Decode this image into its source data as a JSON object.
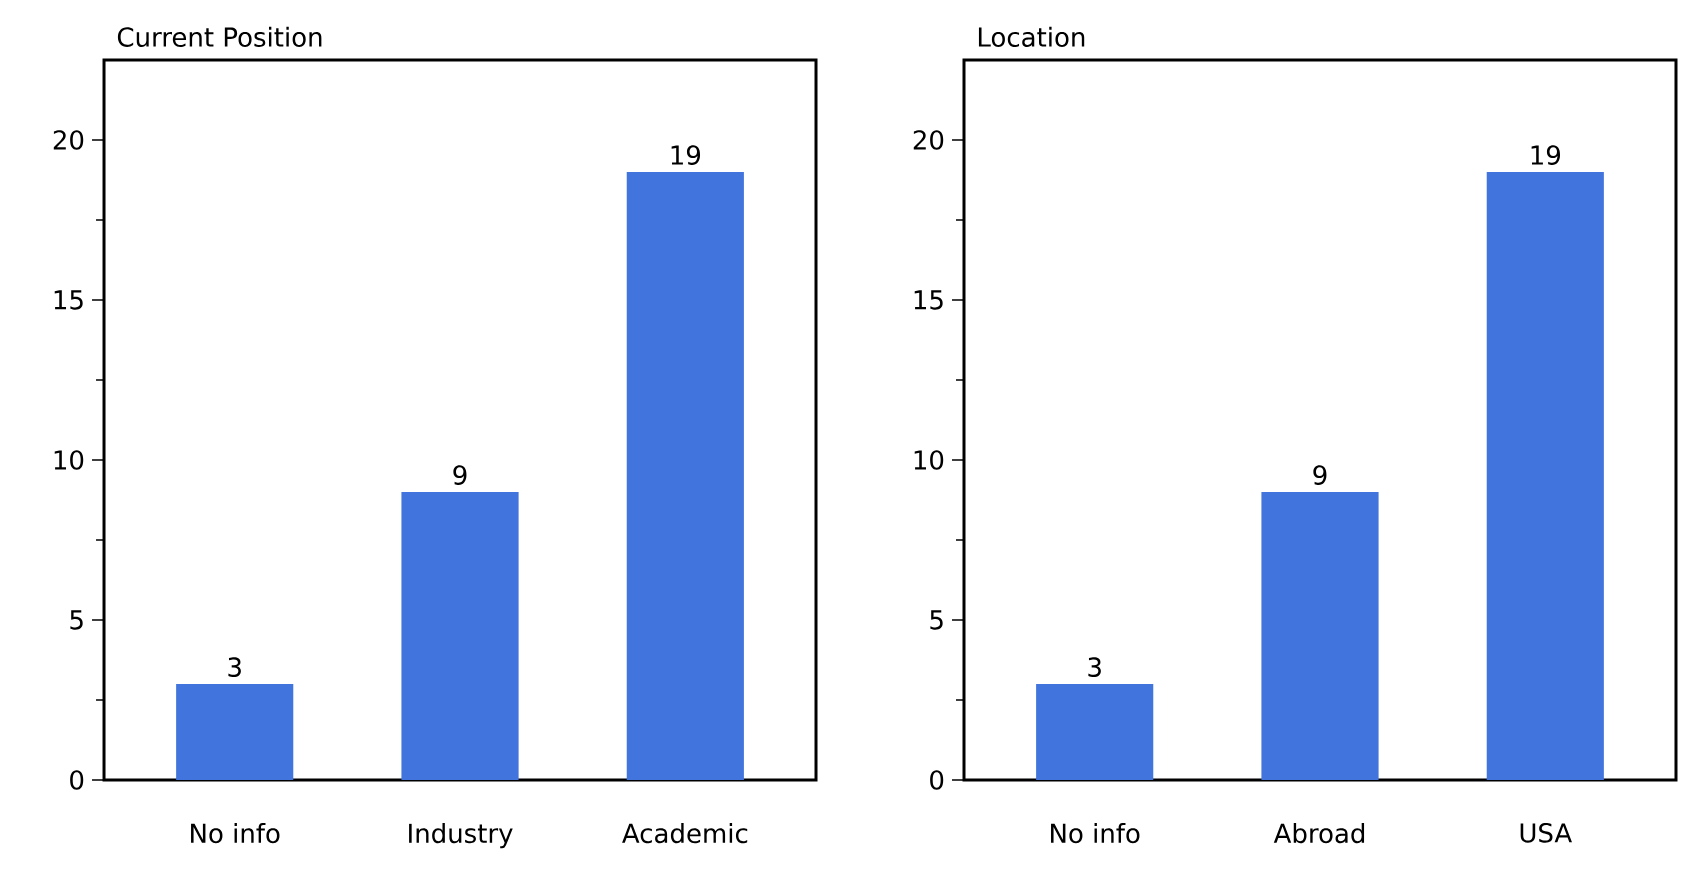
{
  "chart_data": [
    {
      "type": "bar",
      "title": "Current Position",
      "categories": [
        "No info",
        "Industry",
        "Academic"
      ],
      "values": [
        3,
        9,
        19
      ],
      "color": "#4274de",
      "ylim": [
        0,
        22.5
      ],
      "yticks": [
        0,
        5,
        10,
        15,
        20
      ],
      "data_labels": true,
      "grid": false
    },
    {
      "type": "bar",
      "title": "Location",
      "categories": [
        "No info",
        "Abroad",
        "USA"
      ],
      "values": [
        3,
        9,
        19
      ],
      "color": "#4274de",
      "ylim": [
        0,
        22.5
      ],
      "yticks": [
        0,
        5,
        10,
        15,
        20
      ],
      "data_labels": true,
      "grid": false
    }
  ]
}
